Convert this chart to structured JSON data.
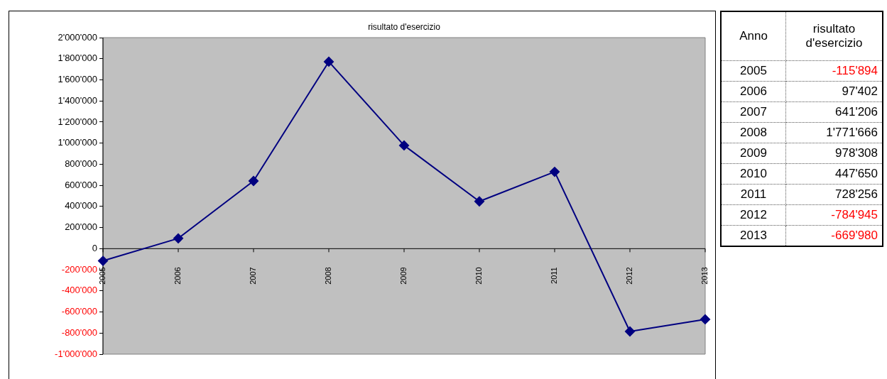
{
  "chart_data": {
    "type": "line",
    "title": "risultato d'esercizio",
    "categories": [
      "2005",
      "2006",
      "2007",
      "2008",
      "2009",
      "2010",
      "2011",
      "2012",
      "2013"
    ],
    "series": [
      {
        "color": "#000080",
        "values": [
          -115894,
          97402,
          641206,
          1771666,
          978308,
          447650,
          728256,
          -784945,
          -669980
        ]
      }
    ],
    "value_labels": [
      "-115'894",
      "97'402",
      "641'206",
      "1'771'666",
      "978'308",
      "447'650",
      "728'256",
      "-784'945",
      "-669'980"
    ],
    "annotations": [
      "Anno",
      "risultato d'esercizio"
    ],
    "ylim": [
      -1000000,
      2000000
    ],
    "yticks": [
      {
        "value": -1000000,
        "label": "-1'000'000"
      },
      {
        "value": -800000,
        "label": "-800'000"
      },
      {
        "value": -600000,
        "label": "-600'000"
      },
      {
        "value": -400000,
        "label": "-400'000"
      },
      {
        "value": -200000,
        "label": "-200'000"
      },
      {
        "value": 0,
        "label": "0"
      },
      {
        "value": 200000,
        "label": "200'000"
      },
      {
        "value": 400000,
        "label": "400'000"
      },
      {
        "value": 600000,
        "label": "600'000"
      },
      {
        "value": 800000,
        "label": "800'000"
      },
      {
        "value": 1000000,
        "label": "1'000'000"
      },
      {
        "value": 1200000,
        "label": "1'200'000"
      },
      {
        "value": 1400000,
        "label": "1'400'000"
      },
      {
        "value": 1600000,
        "label": "1'600'000"
      },
      {
        "value": 1800000,
        "label": "1'800'000"
      },
      {
        "value": 2000000,
        "label": "2'000'000"
      }
    ],
    "grid": false,
    "legend": false,
    "marker": "diamond",
    "line_style": "solid"
  }
}
